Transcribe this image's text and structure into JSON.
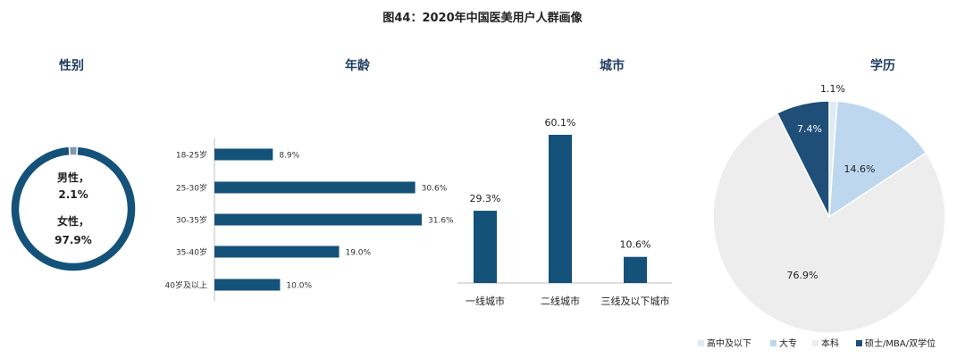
{
  "title": "图44：2020年中国医美用户人群画像",
  "colors": {
    "navy": "#14527a",
    "dark_navy": "#1f4e79",
    "light_blue": "#bdd7ee",
    "very_light_blue": "#ddebf7",
    "light_gray": "#ededed",
    "gray": "#8496b0"
  },
  "chart_data": [
    {
      "type": "pie",
      "title": "性别",
      "slices": [
        {
          "label": "男性，",
          "value": 2.1,
          "value_label": "2.1%"
        },
        {
          "label": "女性，",
          "value": 97.9,
          "value_label": "97.9%"
        }
      ]
    },
    {
      "type": "bar",
      "orientation": "horizontal",
      "title": "年龄",
      "categories": [
        "18-25岁",
        "25-30岁",
        "30-35岁",
        "35-40岁",
        "40岁及以上"
      ],
      "values": [
        8.9,
        30.6,
        31.6,
        19.0,
        10.0
      ],
      "value_labels": [
        "8.9%",
        "30.6%",
        "31.6%",
        "19.0%",
        "10.0%"
      ]
    },
    {
      "type": "bar",
      "title": "城市",
      "categories": [
        "一线城市",
        "二线城市",
        "三线及以下城市"
      ],
      "values": [
        29.3,
        60.1,
        10.6
      ],
      "value_labels": [
        "29.3%",
        "60.1%",
        "10.6%"
      ]
    },
    {
      "type": "pie",
      "title": "学历",
      "legend": "bottom",
      "slices": [
        {
          "label": "高中及以下",
          "value": 1.1,
          "value_label": "1.1%"
        },
        {
          "label": "大专",
          "value": 14.6,
          "value_label": "14.6%"
        },
        {
          "label": "本科",
          "value": 76.9,
          "value_label": "76.9%"
        },
        {
          "label": "硕士/MBA/双学位",
          "value": 7.4,
          "value_label": "7.4%"
        }
      ]
    }
  ]
}
